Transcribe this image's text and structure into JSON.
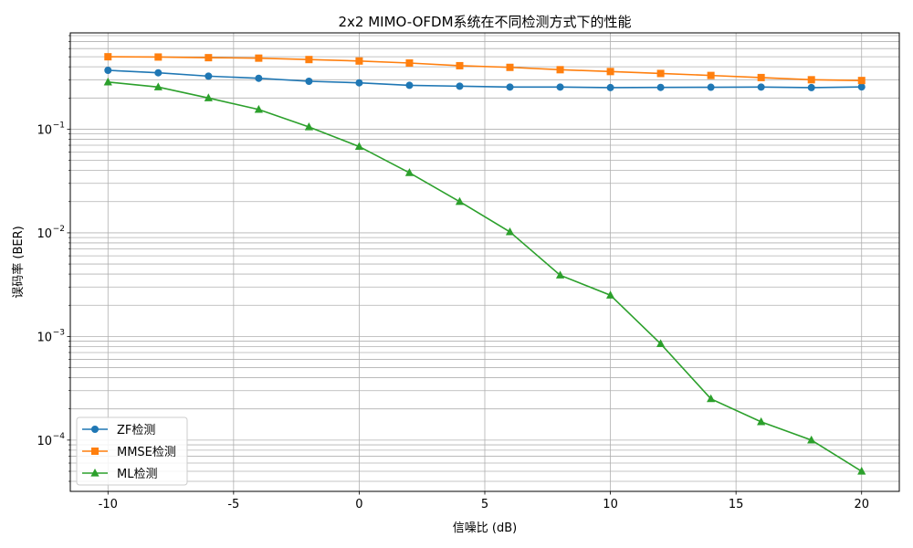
{
  "chart_data": {
    "type": "line",
    "title": "2x2 MIMO-OFDM系统在不同检测方式下的性能",
    "xlabel": "信噪比 (dB)",
    "ylabel": "误码率 (BER)",
    "x": [
      -10,
      -8,
      -6,
      -4,
      -2,
      0,
      2,
      4,
      6,
      8,
      10,
      12,
      14,
      16,
      18,
      20
    ],
    "xlim": [
      -11.5,
      21.5
    ],
    "ylim": [
      3.2e-05,
      0.85
    ],
    "yscale": "log",
    "xticks": [
      -10,
      -5,
      0,
      5,
      10,
      15,
      20
    ],
    "xtick_labels": [
      "-10",
      "-5",
      "0",
      "5",
      "10",
      "15",
      "20"
    ],
    "yticks": [
      0.0001,
      0.001,
      0.01,
      0.1
    ],
    "ytick_labels": [
      {
        "base": "10",
        "exp": "−4"
      },
      {
        "base": "10",
        "exp": "−3"
      },
      {
        "base": "10",
        "exp": "−2"
      },
      {
        "base": "10",
        "exp": "−1"
      }
    ],
    "grid": true,
    "legend_position": "lower-left",
    "series": [
      {
        "name": "ZF检测",
        "color": "#1f77b4",
        "marker": "circle",
        "values": [
          0.37,
          0.35,
          0.325,
          0.31,
          0.29,
          0.28,
          0.265,
          0.26,
          0.255,
          0.255,
          0.252,
          0.253,
          0.254,
          0.255,
          0.252,
          0.256
        ]
      },
      {
        "name": "MMSE检测",
        "color": "#ff7f0e",
        "marker": "square",
        "values": [
          0.5,
          0.497,
          0.49,
          0.485,
          0.47,
          0.455,
          0.435,
          0.41,
          0.395,
          0.375,
          0.36,
          0.345,
          0.33,
          0.315,
          0.3,
          0.295
        ]
      },
      {
        "name": "ML检测",
        "color": "#2ca02c",
        "marker": "triangle",
        "values": [
          0.285,
          0.255,
          0.2,
          0.155,
          0.105,
          0.068,
          0.038,
          0.02,
          0.0102,
          0.0039,
          0.0025,
          0.00085,
          0.00025,
          0.00015,
          0.0001,
          5e-05
        ]
      }
    ]
  }
}
